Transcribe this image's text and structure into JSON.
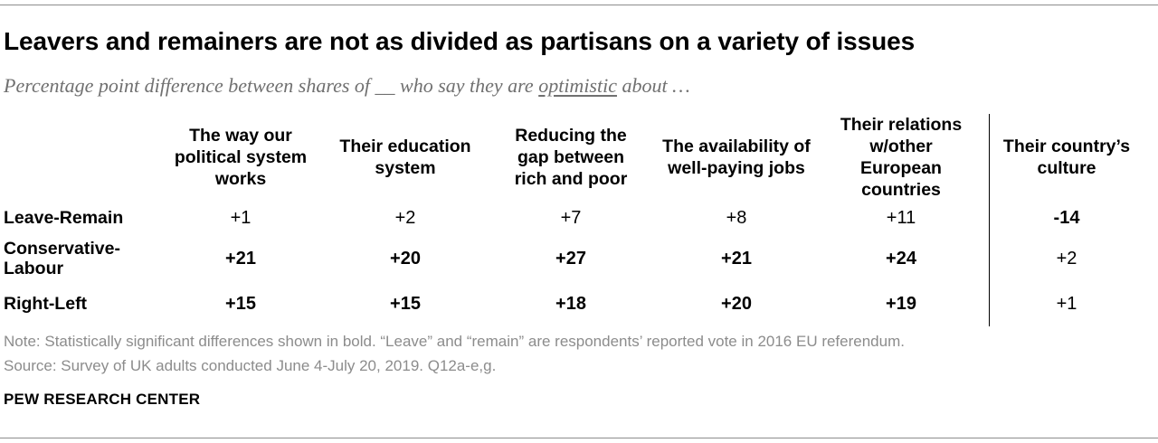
{
  "chart_data": {
    "type": "table",
    "title": "Leavers and remainers are not as divided as partisans on a variety of issues",
    "subtitle": {
      "before": "Percentage point difference between shares of __ who say they are ",
      "underlined": "optimistic",
      "after": " about …"
    },
    "columns": [
      "The way our political system works",
      "Their education system",
      "Reducing the gap between rich and poor",
      "The availability of well-paying jobs",
      "Their relations w/other European countries",
      "Their country’s culture"
    ],
    "rows": [
      {
        "label": "Leave-Remain",
        "values": [
          "+1",
          "+2",
          "+7",
          "+8",
          "+11",
          "-14"
        ],
        "bold": [
          false,
          false,
          false,
          false,
          false,
          true
        ]
      },
      {
        "label": "Conservative-Labour",
        "values": [
          "+21",
          "+20",
          "+27",
          "+21",
          "+24",
          "+2"
        ],
        "bold": [
          true,
          true,
          true,
          true,
          true,
          false
        ]
      },
      {
        "label": "Right-Left",
        "values": [
          "+15",
          "+15",
          "+18",
          "+20",
          "+19",
          "+1"
        ],
        "bold": [
          true,
          true,
          true,
          true,
          true,
          false
        ]
      }
    ],
    "note": "Note: Statistically significant differences shown in bold. “Leave” and “remain” are respondents’ reported vote in 2016 EU referendum.",
    "source": "Source: Survey of UK adults conducted June 4-July 20, 2019. Q12a-e,g.",
    "brand": "PEW RESEARCH CENTER"
  }
}
